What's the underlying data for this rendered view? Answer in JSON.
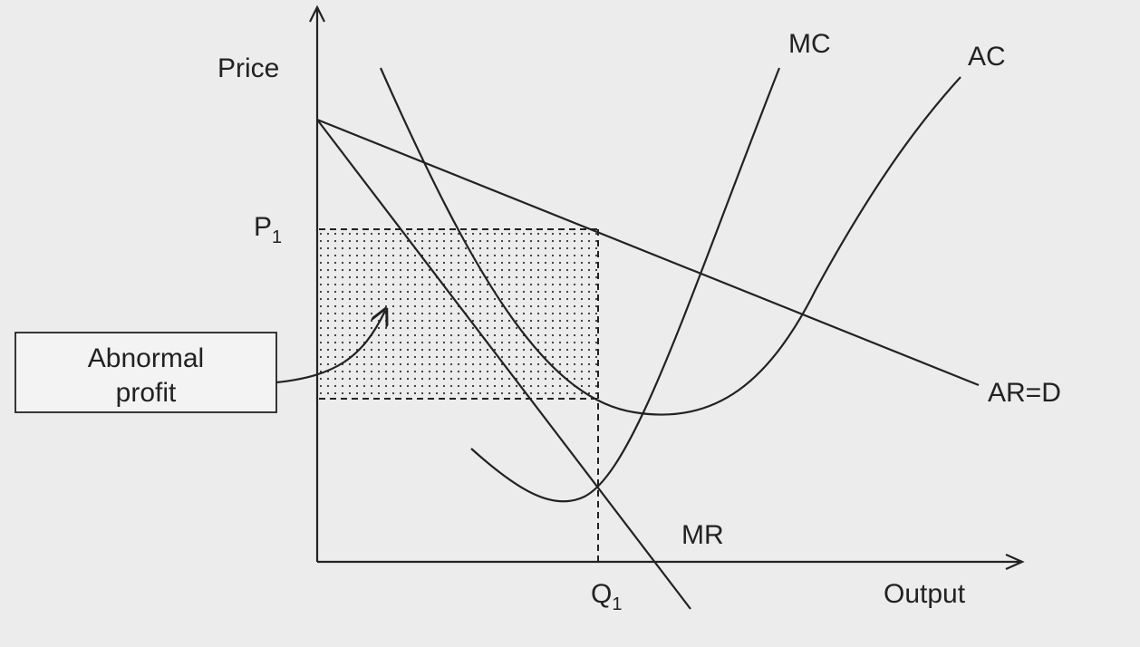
{
  "axes": {
    "y_label": "Price",
    "x_label": "Output"
  },
  "curves": {
    "mc": "MC",
    "ac": "AC",
    "demand": "AR=D",
    "mr": "MR"
  },
  "price": {
    "symbol": "P",
    "subscript": "1"
  },
  "quantity": {
    "symbol": "Q",
    "subscript": "1"
  },
  "annotation": {
    "line1": "Abnormal",
    "line2": "profit"
  }
}
